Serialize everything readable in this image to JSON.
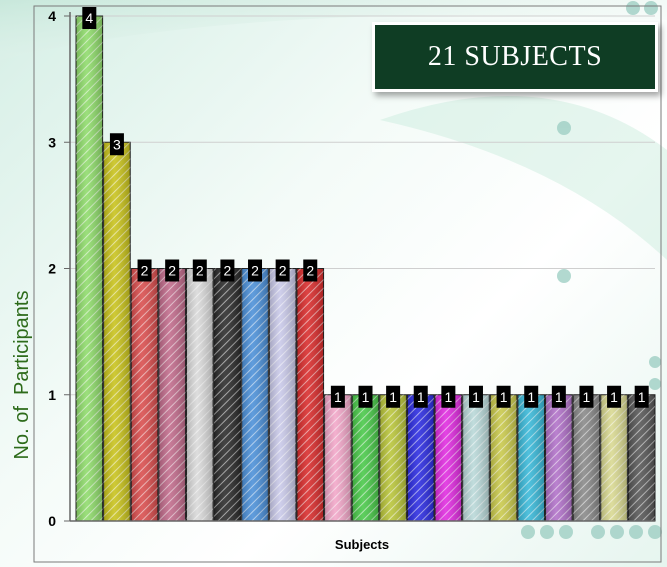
{
  "title": "21 SUBJECTS",
  "chart_data": {
    "type": "bar",
    "xlabel": "Subjects",
    "ylabel": "No. of  Participants",
    "ylim": [
      0,
      4
    ],
    "yticks": [
      0,
      1,
      2,
      3,
      4
    ],
    "grid": true,
    "values": [
      4,
      3,
      2,
      2,
      2,
      2,
      2,
      2,
      2,
      1,
      1,
      1,
      1,
      1,
      1,
      1,
      1,
      1,
      1,
      1,
      1
    ],
    "data_labels": [
      "4",
      "3",
      "2",
      "2",
      "2",
      "2",
      "2",
      "2",
      "2",
      "1",
      "1",
      "1",
      "1",
      "1",
      "1",
      "1",
      "1",
      "1",
      "1",
      "1",
      "1"
    ],
    "bar_colors": [
      "#8edb6a",
      "#c8c21a",
      "#d94c4c",
      "#c06a8a",
      "#d8d8d8",
      "#2a2a2a",
      "#4a8fd8",
      "#c8c8e8",
      "#d82a2a",
      "#f2a6c8",
      "#48c848",
      "#b8c438",
      "#2a2ae0",
      "#e02ae0",
      "#b8d8d8",
      "#c8c84a",
      "#38b8d8",
      "#b070c8",
      "#888888",
      "#d8d890",
      "#555555"
    ]
  }
}
